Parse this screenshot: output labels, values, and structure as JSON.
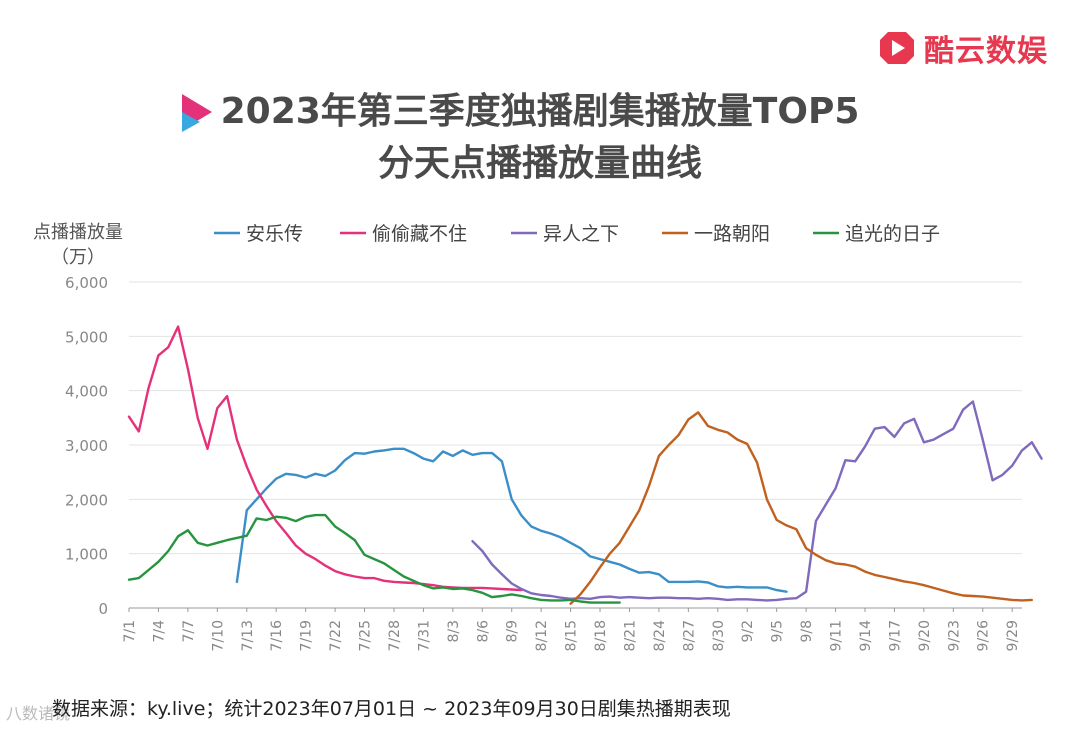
{
  "brand": {
    "name": "酷云数娱",
    "icon": "play-logo-icon"
  },
  "title": {
    "line1": "2023年第三季度独播剧集播放量TOP5",
    "line2": "分天点播播放量曲线"
  },
  "source_text": "数据来源：ky.live；统计2023年07月01日 ~ 2023年09月30日剧集热播期表现",
  "watermark_text": "八数诸镜",
  "colors": {
    "brand": "#e8384f",
    "text": "#4a4a4a",
    "axis": "#888888"
  },
  "chart_data": {
    "type": "line",
    "title": "2023年第三季度独播剧集播放量TOP5 分天点播播放量曲线",
    "ylabel": "点播播放量",
    "ylabel_unit": "（万）",
    "xlabel": "",
    "ylim": [
      0,
      6000
    ],
    "yticks": [
      0,
      1000,
      2000,
      3000,
      4000,
      5000,
      6000
    ],
    "ytick_labels": [
      "0",
      "1,000",
      "2,000",
      "3,000",
      "4,000",
      "5,000",
      "6,000"
    ],
    "xtick_labels": [
      "7/1",
      "7/4",
      "7/7",
      "7/10",
      "7/13",
      "7/16",
      "7/19",
      "7/22",
      "7/25",
      "7/28",
      "7/31",
      "8/3",
      "8/6",
      "8/9",
      "8/12",
      "8/15",
      "8/18",
      "8/21",
      "8/24",
      "8/27",
      "8/30",
      "9/2",
      "9/5",
      "9/8",
      "9/11",
      "9/14",
      "9/17",
      "9/20",
      "9/23",
      "9/26",
      "9/29"
    ],
    "grid": true,
    "legend_position": "top",
    "series": [
      {
        "name": "安乐传",
        "color": "#3a8fc8",
        "start": 11,
        "values": [
          480,
          1800,
          2000,
          2200,
          2380,
          2470,
          2450,
          2400,
          2470,
          2430,
          2530,
          2720,
          2850,
          2840,
          2880,
          2900,
          2930,
          2930,
          2850,
          2750,
          2700,
          2880,
          2800,
          2900,
          2820,
          2850,
          2850,
          2700,
          2000,
          1700,
          1500,
          1420,
          1370,
          1300,
          1200,
          1100,
          950,
          900,
          850,
          800,
          720,
          650,
          660,
          620,
          480,
          480,
          480,
          490,
          470,
          400,
          380,
          390,
          380,
          380,
          380,
          330,
          300
        ]
      },
      {
        "name": "偷偷藏不住",
        "color": "#e4317a",
        "start": 0,
        "values": [
          3520,
          3250,
          4050,
          4650,
          4800,
          5180,
          4400,
          3500,
          2930,
          3680,
          3900,
          3100,
          2600,
          2180,
          1880,
          1600,
          1380,
          1150,
          1000,
          900,
          780,
          680,
          620,
          580,
          550,
          550,
          500,
          480,
          470,
          460,
          440,
          420,
          390,
          380,
          370,
          370,
          370,
          360,
          350,
          340,
          330
        ]
      },
      {
        "name": "异人之下",
        "color": "#7f6abd",
        "start": 35,
        "values": [
          1230,
          1050,
          800,
          620,
          450,
          350,
          270,
          240,
          220,
          190,
          170,
          180,
          170,
          200,
          210,
          190,
          200,
          190,
          180,
          190,
          190,
          180,
          180,
          170,
          180,
          170,
          150,
          160,
          160,
          150,
          140,
          150,
          170,
          180,
          300,
          1600,
          1900,
          2200,
          2720,
          2700,
          2970,
          3300,
          3330,
          3150,
          3400,
          3480,
          3050,
          3100,
          3200,
          3300,
          3650,
          3800,
          3100,
          2350,
          2450,
          2620,
          2900,
          3050,
          2750
        ]
      },
      {
        "name": "一路朝阳",
        "color": "#c0611f",
        "start": 45,
        "values": [
          80,
          250,
          480,
          750,
          1000,
          1200,
          1500,
          1800,
          2250,
          2800,
          3000,
          3180,
          3470,
          3600,
          3350,
          3280,
          3230,
          3100,
          3020,
          2680,
          2000,
          1620,
          1520,
          1450,
          1100,
          980,
          880,
          820,
          800,
          760,
          670,
          610,
          570,
          530,
          490,
          460,
          420,
          370,
          320,
          270,
          230,
          220,
          210,
          190,
          170,
          150,
          140,
          150
        ]
      },
      {
        "name": "追光的日子",
        "color": "#27943f",
        "start": 0,
        "values": [
          520,
          550,
          700,
          850,
          1050,
          1320,
          1430,
          1200,
          1150,
          1200,
          1250,
          1290,
          1330,
          1650,
          1620,
          1680,
          1660,
          1600,
          1680,
          1710,
          1710,
          1500,
          1380,
          1250,
          980,
          900,
          820,
          700,
          580,
          500,
          420,
          360,
          380,
          350,
          360,
          330,
          280,
          200,
          220,
          250,
          220,
          180,
          150,
          140,
          140,
          150,
          120,
          100,
          100,
          100,
          100
        ]
      }
    ]
  }
}
